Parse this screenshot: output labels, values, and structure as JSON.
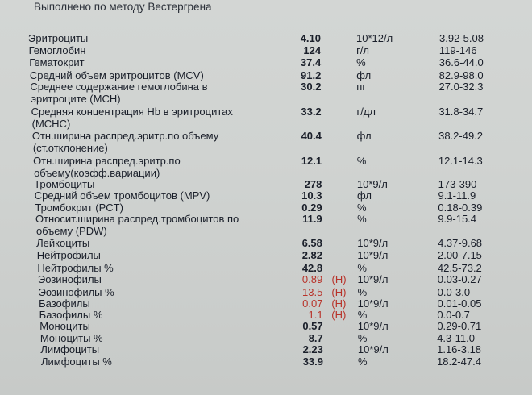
{
  "header": "Выполнено по методу Вестергрена",
  "rows": [
    {
      "name": [
        "Эритроциты"
      ],
      "value": "4.10",
      "flag": "",
      "unit": "10*12/л",
      "ref": "3.92-5.08"
    },
    {
      "name": [
        "Гемоглобин"
      ],
      "value": "124",
      "flag": "",
      "unit": "г/л",
      "ref": "119-146"
    },
    {
      "name": [
        "Гематокрит"
      ],
      "value": "37.4",
      "flag": "",
      "unit": "%",
      "ref": "36.6-44.0"
    },
    {
      "name": [
        "Средний объем эритроцитов (MCV)"
      ],
      "value": "91.2",
      "flag": "",
      "unit": "фл",
      "ref": "82.9-98.0"
    },
    {
      "name": [
        "Среднее содержание гемоглобина в",
        "эритроците (МСН)"
      ],
      "value": "30.2",
      "flag": "",
      "unit": "пг",
      "ref": "27.0-32.3"
    },
    {
      "name": [
        "Средняя концентрация Hb в эритроцитах",
        "(МСНС)"
      ],
      "value": "33.2",
      "flag": "",
      "unit": "г/дл",
      "ref": "31.8-34.7"
    },
    {
      "name": [
        "Отн.ширина распред.эритр.по объему",
        "(ст.отклонение)"
      ],
      "value": "40.4",
      "flag": "",
      "unit": "фл",
      "ref": "38.2-49.2"
    },
    {
      "name": [
        "Отн.ширина распред.эритр.по",
        "объему(коэфф.вариации)"
      ],
      "value": "12.1",
      "flag": "",
      "unit": "%",
      "ref": "12.1-14.3"
    },
    {
      "name": [
        "Тромбоциты"
      ],
      "value": "278",
      "flag": "",
      "unit": "10*9/л",
      "ref": "173-390"
    },
    {
      "name": [
        "Средний объем тромбоцитов (MPV)"
      ],
      "value": "10.3",
      "flag": "",
      "unit": "фл",
      "ref": "9.1-11.9"
    },
    {
      "name": [
        "Тромбокрит (PCT)"
      ],
      "value": "0.29",
      "flag": "",
      "unit": "%",
      "ref": "0.18-0.39"
    },
    {
      "name": [
        "Относит.ширина распред.тромбоцитов по",
        "объему (PDW)"
      ],
      "value": "11.9",
      "flag": "",
      "unit": "%",
      "ref": "9.9-15.4"
    },
    {
      "name": [
        "Лейкоциты"
      ],
      "value": "6.58",
      "flag": "",
      "unit": "10*9/л",
      "ref": "4.37-9.68"
    },
    {
      "name": [
        "Нейтрофилы"
      ],
      "value": "2.82",
      "flag": "",
      "unit": "10*9/л",
      "ref": "2.00-7.15"
    },
    {
      "name": [
        "Нейтрофилы %"
      ],
      "value": "42.8",
      "flag": "",
      "unit": "%",
      "ref": "42.5-73.2"
    },
    {
      "name": [
        "Эозинофилы"
      ],
      "value": "0.89",
      "flag": "(H)",
      "unit": "10*9/л",
      "ref": "0.03-0.27"
    },
    {
      "name": [
        "Эозинофилы %"
      ],
      "value": "13.5",
      "flag": "(H)",
      "unit": "%",
      "ref": "0.0-3.0"
    },
    {
      "name": [
        "Базофилы"
      ],
      "value": "0.07",
      "flag": "(H)",
      "unit": "10*9/л",
      "ref": "0.01-0.05"
    },
    {
      "name": [
        "Базофилы %"
      ],
      "value": "1.1",
      "flag": "(H)",
      "unit": "%",
      "ref": "0.0-0.7"
    },
    {
      "name": [
        "Моноциты"
      ],
      "value": "0.57",
      "flag": "",
      "unit": "10*9/л",
      "ref": "0.29-0.71"
    },
    {
      "name": [
        "Моноциты %"
      ],
      "value": "8.7",
      "flag": "",
      "unit": "%",
      "ref": "4.3-11.0"
    },
    {
      "name": [
        "Лимфоциты"
      ],
      "value": "2.23",
      "flag": "",
      "unit": "10*9/л",
      "ref": "1.16-3.18"
    },
    {
      "name": [
        "Лимфоциты %"
      ],
      "value": "33.9",
      "flag": "",
      "unit": "%",
      "ref": "18.2-47.4"
    }
  ],
  "colors": {
    "abnormal": "#b8332a",
    "text": "#1a1f2a"
  }
}
